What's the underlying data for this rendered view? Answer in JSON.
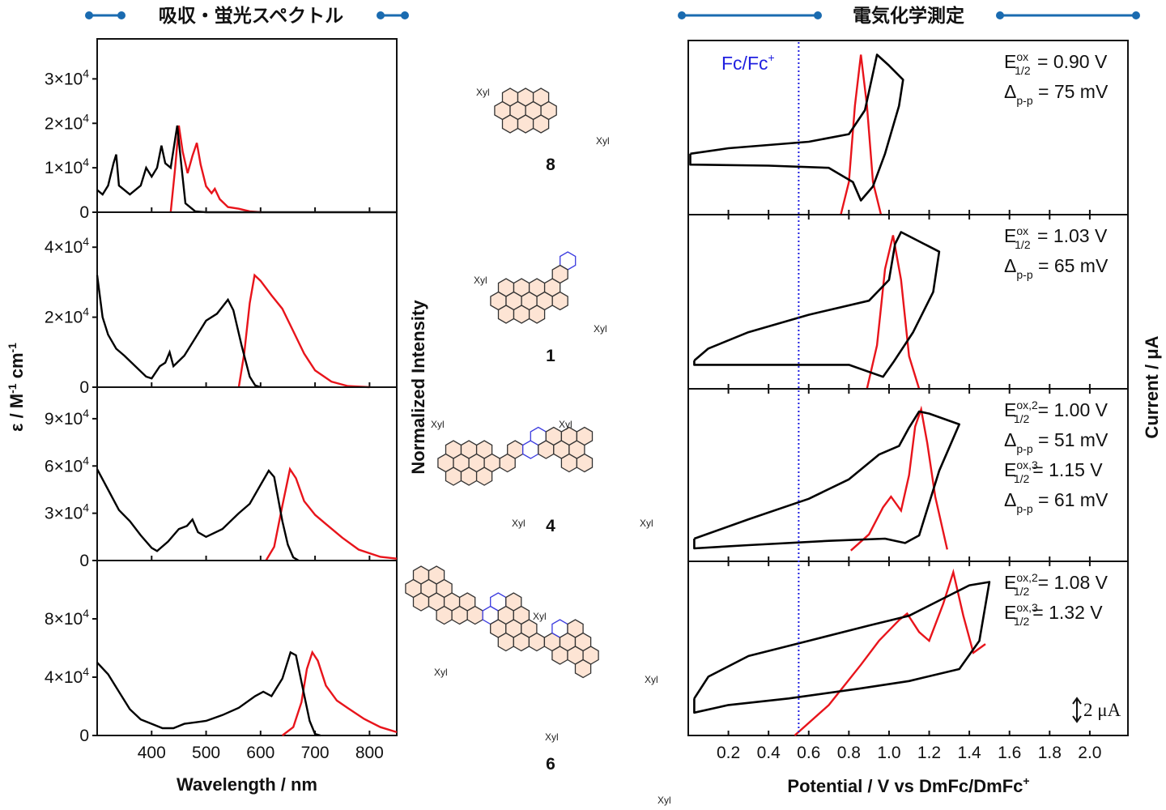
{
  "header": {
    "left_title": "吸収・蛍光スペクトル",
    "right_title": "電気化学測定",
    "accent_color": "#1a6bb0"
  },
  "axes": {
    "left_ylabel": "ε / M",
    "left_ylabel_sup1": "-1",
    "left_ylabel_mid": " cm",
    "left_ylabel_sup2": "-1",
    "left_xlabel": "Wavelength / nm",
    "middle_ylabel": "Normalized Intensity",
    "right_xlabel": "Potential / V vs DmFc/DmFc",
    "right_xlabel_sup": "+",
    "right_ylabel": "Current / μA",
    "left_xticks": [
      "400",
      "500",
      "600",
      "700",
      "800"
    ],
    "right_xticks": [
      "0.2",
      "0.4",
      "0.6",
      "0.8",
      "1.0",
      "1.2",
      "1.4",
      "1.6",
      "1.8",
      "2.0"
    ],
    "fc_label": "Fc/Fc",
    "fc_label_sup": "+",
    "fc_potential": 0.55,
    "scale_bar_label": "2 μA",
    "scale_bar_value_uA": 2
  },
  "compounds": [
    {
      "label": "8",
      "substituent": "Xyl"
    },
    {
      "label": "1",
      "substituent": "Xyl"
    },
    {
      "label": "4",
      "substituent": "Xyl"
    },
    {
      "label": "6",
      "substituent": "Xyl"
    }
  ],
  "colors": {
    "absorption": "#000000",
    "emission": "#e8141b",
    "dpv": "#e8141b",
    "cv": "#000000",
    "fc_line": "#1f1fe0",
    "ring_fill": "#fde4d4",
    "ring_blue": "#3a3adf"
  },
  "chart_data": [
    {
      "type": "line",
      "panel": "absorption-8",
      "compound": "8",
      "xlim": [
        300,
        850
      ],
      "ylim": [
        0,
        39000
      ],
      "yticks": [
        {
          "value": 0,
          "label": "0"
        },
        {
          "value": 10000,
          "label": "1×10",
          "exp": "4"
        },
        {
          "value": 20000,
          "label": "2×10",
          "exp": "4"
        },
        {
          "value": 30000,
          "label": "3×10",
          "exp": "4"
        }
      ],
      "absorption": [
        [
          300,
          5000
        ],
        [
          310,
          4000
        ],
        [
          320,
          6000
        ],
        [
          330,
          11000
        ],
        [
          335,
          13000
        ],
        [
          340,
          6000
        ],
        [
          360,
          4000
        ],
        [
          380,
          6000
        ],
        [
          390,
          10000
        ],
        [
          400,
          8000
        ],
        [
          410,
          10000
        ],
        [
          418,
          15000
        ],
        [
          425,
          11000
        ],
        [
          435,
          10000
        ],
        [
          447,
          19500
        ],
        [
          455,
          10000
        ],
        [
          462,
          2000
        ],
        [
          480,
          200
        ],
        [
          500,
          0
        ],
        [
          850,
          0
        ]
      ],
      "emission_normalized": [
        [
          435,
          0
        ],
        [
          443,
          0.5
        ],
        [
          450,
          1.0
        ],
        [
          457,
          0.7
        ],
        [
          466,
          0.45
        ],
        [
          475,
          0.65
        ],
        [
          483,
          0.8
        ],
        [
          490,
          0.55
        ],
        [
          500,
          0.3
        ],
        [
          510,
          0.22
        ],
        [
          516,
          0.27
        ],
        [
          525,
          0.15
        ],
        [
          540,
          0.06
        ],
        [
          560,
          0.04
        ],
        [
          580,
          0.01
        ],
        [
          600,
          0
        ]
      ]
    },
    {
      "type": "line",
      "panel": "absorption-1",
      "compound": "1",
      "xlim": [
        300,
        850
      ],
      "ylim": [
        0,
        50000
      ],
      "yticks": [
        {
          "value": 0,
          "label": "0"
        },
        {
          "value": 20000,
          "label": "2×10",
          "exp": "4"
        },
        {
          "value": 40000,
          "label": "4×10",
          "exp": "4"
        }
      ],
      "absorption": [
        [
          300,
          32000
        ],
        [
          310,
          20000
        ],
        [
          320,
          15000
        ],
        [
          335,
          11000
        ],
        [
          350,
          9000
        ],
        [
          370,
          6000
        ],
        [
          390,
          3000
        ],
        [
          400,
          2500
        ],
        [
          415,
          6000
        ],
        [
          425,
          7000
        ],
        [
          433,
          10000
        ],
        [
          440,
          6000
        ],
        [
          460,
          9000
        ],
        [
          480,
          14000
        ],
        [
          500,
          19000
        ],
        [
          520,
          21000
        ],
        [
          540,
          25000
        ],
        [
          550,
          22000
        ],
        [
          565,
          12000
        ],
        [
          580,
          3000
        ],
        [
          590,
          500
        ],
        [
          600,
          0
        ]
      ],
      "emission_normalized": [
        [
          560,
          0
        ],
        [
          570,
          0.3
        ],
        [
          580,
          0.75
        ],
        [
          589,
          1.0
        ],
        [
          600,
          0.95
        ],
        [
          620,
          0.82
        ],
        [
          640,
          0.7
        ],
        [
          660,
          0.5
        ],
        [
          680,
          0.3
        ],
        [
          700,
          0.15
        ],
        [
          730,
          0.05
        ],
        [
          760,
          0.01
        ],
        [
          800,
          0
        ]
      ]
    },
    {
      "type": "line",
      "panel": "absorption-4",
      "compound": "4",
      "xlim": [
        300,
        850
      ],
      "ylim": [
        0,
        110000
      ],
      "yticks": [
        {
          "value": 0,
          "label": "0"
        },
        {
          "value": 30000,
          "label": "3×10",
          "exp": "4"
        },
        {
          "value": 60000,
          "label": "6×10",
          "exp": "4"
        },
        {
          "value": 90000,
          "label": "9×10",
          "exp": "4"
        }
      ],
      "absorption": [
        [
          300,
          58000
        ],
        [
          320,
          45000
        ],
        [
          340,
          32000
        ],
        [
          360,
          25000
        ],
        [
          380,
          16000
        ],
        [
          400,
          8000
        ],
        [
          410,
          6000
        ],
        [
          430,
          12000
        ],
        [
          450,
          20000
        ],
        [
          465,
          22000
        ],
        [
          475,
          26000
        ],
        [
          485,
          18000
        ],
        [
          500,
          15000
        ],
        [
          530,
          20000
        ],
        [
          560,
          30000
        ],
        [
          580,
          36000
        ],
        [
          600,
          48000
        ],
        [
          615,
          57000
        ],
        [
          625,
          53000
        ],
        [
          640,
          25000
        ],
        [
          650,
          10000
        ],
        [
          660,
          2000
        ],
        [
          670,
          0
        ]
      ],
      "emission_normalized": [
        [
          610,
          0
        ],
        [
          625,
          0.15
        ],
        [
          640,
          0.6
        ],
        [
          654,
          1.0
        ],
        [
          665,
          0.9
        ],
        [
          680,
          0.65
        ],
        [
          700,
          0.5
        ],
        [
          720,
          0.4
        ],
        [
          750,
          0.25
        ],
        [
          780,
          0.12
        ],
        [
          820,
          0.04
        ],
        [
          850,
          0.02
        ]
      ]
    },
    {
      "type": "line",
      "panel": "absorption-6",
      "compound": "6",
      "xlim": [
        300,
        850
      ],
      "ylim": [
        0,
        120000
      ],
      "yticks": [
        {
          "value": 0,
          "label": "0"
        },
        {
          "value": 40000,
          "label": "4×10",
          "exp": "4"
        },
        {
          "value": 80000,
          "label": "8×10",
          "exp": "4"
        }
      ],
      "absorption": [
        [
          300,
          50000
        ],
        [
          320,
          42000
        ],
        [
          340,
          30000
        ],
        [
          360,
          18000
        ],
        [
          380,
          11000
        ],
        [
          400,
          8000
        ],
        [
          420,
          5000
        ],
        [
          440,
          5000
        ],
        [
          460,
          8000
        ],
        [
          480,
          9000
        ],
        [
          500,
          10000
        ],
        [
          530,
          14000
        ],
        [
          560,
          19000
        ],
        [
          590,
          27000
        ],
        [
          605,
          30000
        ],
        [
          620,
          27000
        ],
        [
          640,
          39000
        ],
        [
          655,
          57000
        ],
        [
          665,
          55000
        ],
        [
          680,
          28000
        ],
        [
          690,
          10000
        ],
        [
          700,
          1000
        ],
        [
          710,
          0
        ]
      ],
      "emission_normalized": [
        [
          640,
          0
        ],
        [
          660,
          0.1
        ],
        [
          675,
          0.4
        ],
        [
          685,
          0.8
        ],
        [
          695,
          1.0
        ],
        [
          705,
          0.9
        ],
        [
          720,
          0.6
        ],
        [
          740,
          0.42
        ],
        [
          760,
          0.33
        ],
        [
          790,
          0.2
        ],
        [
          820,
          0.1
        ],
        [
          850,
          0.04
        ]
      ]
    },
    {
      "type": "line",
      "panel": "cv-8",
      "compound": "8",
      "xlim": [
        0,
        2.19
      ],
      "ylim": [
        0,
        16
      ],
      "annotations": [
        {
          "symbol": "E",
          "sup": "ox",
          "sub": "1/2",
          "value": " = 0.90 V"
        },
        {
          "symbol": "Δ",
          "sub": "p-p",
          "value": " = 75 mV"
        }
      ],
      "cv": [
        [
          0.01,
          5.6
        ],
        [
          0.2,
          6.1
        ],
        [
          0.6,
          6.7
        ],
        [
          0.8,
          7.4
        ],
        [
          0.88,
          9.6
        ],
        [
          0.94,
          14.7
        ],
        [
          1.0,
          13.7
        ],
        [
          1.07,
          12.4
        ],
        [
          1.05,
          10
        ],
        [
          0.98,
          5.6
        ],
        [
          0.92,
          2.6
        ],
        [
          0.86,
          1.3
        ],
        [
          0.82,
          3
        ],
        [
          0.7,
          4.3
        ],
        [
          0.4,
          4.5
        ],
        [
          0.01,
          4.6
        ]
      ],
      "dpv": [
        [
          0.76,
          0
        ],
        [
          0.8,
          3
        ],
        [
          0.83,
          10
        ],
        [
          0.86,
          14.7
        ],
        [
          0.89,
          10
        ],
        [
          0.92,
          3
        ],
        [
          0.96,
          0
        ]
      ]
    },
    {
      "type": "line",
      "panel": "cv-1",
      "compound": "1",
      "xlim": [
        0,
        2.19
      ],
      "ylim": [
        0,
        16
      ],
      "annotations": [
        {
          "symbol": "E",
          "sup": "ox",
          "sub": "1/2",
          "value": " = 1.03 V"
        },
        {
          "symbol": "Δ",
          "sub": "p-p",
          "value": " = 65 mV"
        }
      ],
      "cv": [
        [
          0.03,
          2.6
        ],
        [
          0.1,
          3.7
        ],
        [
          0.3,
          5.2
        ],
        [
          0.6,
          6.8
        ],
        [
          0.9,
          8.1
        ],
        [
          1.0,
          10
        ],
        [
          1.03,
          13.3
        ],
        [
          1.06,
          14.4
        ],
        [
          1.25,
          12.6
        ],
        [
          1.22,
          8.9
        ],
        [
          1.12,
          5.2
        ],
        [
          1.02,
          2.4
        ],
        [
          0.97,
          1.1
        ],
        [
          0.8,
          2.2
        ],
        [
          0.4,
          2.2
        ],
        [
          0.03,
          2.2
        ]
      ],
      "dpv": [
        [
          0.89,
          0
        ],
        [
          0.94,
          4
        ],
        [
          0.98,
          11
        ],
        [
          1.02,
          14.1
        ],
        [
          1.06,
          10
        ],
        [
          1.1,
          3
        ],
        [
          1.15,
          0
        ]
      ]
    },
    {
      "type": "line",
      "panel": "cv-4",
      "compound": "4",
      "xlim": [
        0,
        2.19
      ],
      "ylim": [
        0,
        16
      ],
      "annotations": [
        {
          "symbol": "E",
          "sup": "ox,2",
          "sub": "1/2",
          "value": " = 1.00 V"
        },
        {
          "symbol": "Δ",
          "sub": "p-p",
          "value": " = 51 mV"
        },
        {
          "symbol": "E",
          "sup": "ox,3",
          "sub": "1/2",
          "value": "= 1.15 V"
        },
        {
          "symbol": "Δ",
          "sub": "p-p",
          "value": " = 61 mV"
        }
      ],
      "cv": [
        [
          0.03,
          2.1
        ],
        [
          0.3,
          3.9
        ],
        [
          0.6,
          5.8
        ],
        [
          0.8,
          7.6
        ],
        [
          0.95,
          9.9
        ],
        [
          1.05,
          10.7
        ],
        [
          1.1,
          12.4
        ],
        [
          1.15,
          13.9
        ],
        [
          1.2,
          13.7
        ],
        [
          1.35,
          12.7
        ],
        [
          1.25,
          8.4
        ],
        [
          1.15,
          2.4
        ],
        [
          1.08,
          1.7
        ],
        [
          0.98,
          2.1
        ],
        [
          0.7,
          1.9
        ],
        [
          0.3,
          1.5
        ],
        [
          0.03,
          1.2
        ]
      ],
      "dpv": [
        [
          0.81,
          1
        ],
        [
          0.9,
          2.5
        ],
        [
          0.97,
          5
        ],
        [
          1.01,
          6.0
        ],
        [
          1.06,
          4.7
        ],
        [
          1.1,
          8
        ],
        [
          1.13,
          12.5
        ],
        [
          1.16,
          14.1
        ],
        [
          1.19,
          11
        ],
        [
          1.23,
          6
        ],
        [
          1.29,
          1.1
        ]
      ]
    },
    {
      "type": "line",
      "panel": "cv-6",
      "compound": "6",
      "xlim": [
        0,
        2.19
      ],
      "ylim": [
        0,
        16
      ],
      "annotations": [
        {
          "symbol": "E",
          "sup": "ox,2",
          "sub": "1/2",
          "value": " = 1.08 V"
        },
        {
          "symbol": "E",
          "sup": "ox,3",
          "sub": "1/2",
          "value": "= 1.32 V"
        }
      ],
      "cv": [
        [
          0.03,
          3.4
        ],
        [
          0.1,
          5.4
        ],
        [
          0.3,
          7.3
        ],
        [
          0.6,
          8.7
        ],
        [
          0.9,
          10.1
        ],
        [
          1.1,
          11
        ],
        [
          1.25,
          12.4
        ],
        [
          1.4,
          13.8
        ],
        [
          1.5,
          14.1
        ],
        [
          1.45,
          8.7
        ],
        [
          1.35,
          6.1
        ],
        [
          1.1,
          5
        ],
        [
          0.85,
          4.3
        ],
        [
          0.5,
          3.4
        ],
        [
          0.2,
          2.8
        ],
        [
          0.03,
          2.1
        ]
      ],
      "dpv": [
        [
          0.53,
          0
        ],
        [
          0.7,
          2.8
        ],
        [
          0.86,
          6.5
        ],
        [
          0.95,
          8.7
        ],
        [
          1.05,
          10.6
        ],
        [
          1.09,
          11.2
        ],
        [
          1.15,
          9.5
        ],
        [
          1.2,
          8.7
        ],
        [
          1.27,
          12.1
        ],
        [
          1.32,
          15
        ],
        [
          1.37,
          11
        ],
        [
          1.42,
          7.6
        ],
        [
          1.48,
          8.4
        ]
      ]
    }
  ]
}
